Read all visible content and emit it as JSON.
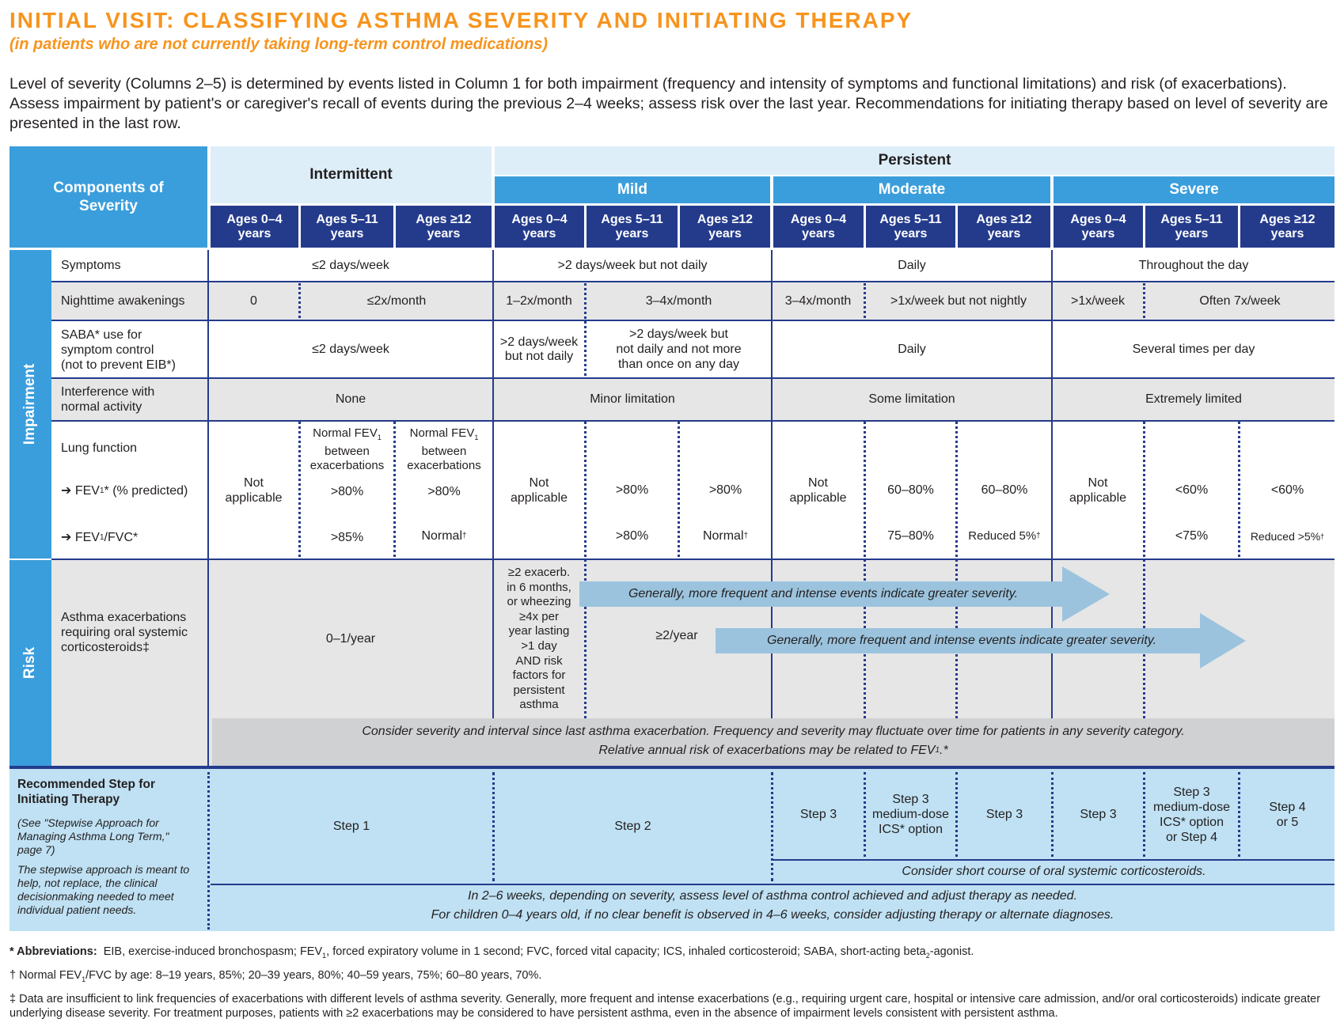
{
  "title": "INITIAL VISIT:  CLASSIFYING ASTHMA SEVERITY AND INITIATING THERAPY",
  "subtitle": "(in patients who are not currently taking long-term control medications)",
  "intro": "Level of severity (Columns 2–5) is determined by events listed in Column 1 for both impairment (frequency and intensity of symptoms and functional limitations) and risk (of exacerbations).  Assess impairment by patient's or caregiver's recall of events during the previous 2–4 weeks; assess risk over the last year.  Recommendations for initiating therapy based on level of severity are presented in the last row.",
  "header": {
    "components": "Components of Severity",
    "intermittent": "Intermittent",
    "persistent": "Persistent",
    "mild": "Mild",
    "moderate": "Moderate",
    "severe": "Severe",
    "ages_0_4": "Ages 0–4 years",
    "ages_5_11": "Ages 5–11 years",
    "ages_12": "Ages ≥12 years"
  },
  "sections": {
    "impairment": "Impairment",
    "risk": "Risk"
  },
  "rows": {
    "symptoms": {
      "label": "Symptoms",
      "intermittent": "≤2 days/week",
      "mild": ">2 days/week but not daily",
      "moderate": "Daily",
      "severe": "Throughout the day"
    },
    "nighttime": {
      "label": "Nighttime awakenings",
      "int_0_4": "0",
      "int_rest": "≤2x/month",
      "mild_0_4": "1–2x/month",
      "mild_rest": "3–4x/month",
      "mod_0_4": "3–4x/month",
      "mod_rest": ">1x/week but not nightly",
      "sev_0_4": ">1x/week",
      "sev_rest": "Often 7x/week"
    },
    "saba": {
      "label_1": "SABA* use for",
      "label_2": "symptom control",
      "label_3": "(not to prevent EIB*)",
      "intermittent": "≤2 days/week",
      "mild_0_4_1": ">2 days/week",
      "mild_0_4_2": "but not daily",
      "mild_rest_1": ">2 days/week but",
      "mild_rest_2": "not daily and not more",
      "mild_rest_3": "than once on any day",
      "moderate": "Daily",
      "severe": "Several times per day"
    },
    "interference": {
      "label_1": "Interference with",
      "label_2": "normal activity",
      "intermittent": "None",
      "mild": "Minor limitation",
      "moderate": "Some limitation",
      "severe": "Extremely limited"
    },
    "lung": {
      "label": "Lung function",
      "fev1_label": "FEV",
      "fev1_label_b": "* (% predicted)",
      "fvc_label": "FEV",
      "fvc_label_b": "/FVC*",
      "sub1": "1",
      "not_applicable_1": "Not",
      "not_applicable_2": "applicable",
      "normal_fev_1": "Normal FEV",
      "normal_fev_2": "between",
      "normal_fev_3": "exacerbations",
      "int_5_11_fev": ">80%",
      "int_5_11_fvc": ">85%",
      "int_12_fev": ">80%",
      "int_12_fvc": "Normal",
      "dagger": "†",
      "mild_5_11_fev": ">80%",
      "mild_5_11_fvc": ">80%",
      "mild_12_fev": ">80%",
      "mild_12_fvc": "Normal",
      "mod_5_11_fev": "60–80%",
      "mod_5_11_fvc": "75–80%",
      "mod_12_fev": "60–80%",
      "mod_12_fvc": "Reduced 5%",
      "sev_5_11_fev": "<60%",
      "sev_5_11_fvc": "<75%",
      "sev_12_fev": "<60%",
      "sev_12_fvc": "Reduced >5%"
    },
    "risk": {
      "label_1": "Asthma exacerbations",
      "label_2": "requiring oral systemic",
      "label_3": "corticosteroids‡",
      "intermittent": "0–1/year",
      "mild_0_4": [
        "≥2 exacerb.",
        "in 6 months,",
        "or wheezing",
        "≥4x per",
        "year lasting",
        ">1 day",
        "AND risk",
        "factors for",
        "persistent",
        "asthma"
      ],
      "mild_rest": "≥2/year",
      "arrow_text": "Generally, more frequent and intense events indicate greater severity.",
      "consider_1": "Consider severity and interval since last asthma exacerbation.  Frequency and severity may fluctuate over time for patients in any severity category.",
      "consider_2": "Relative annual risk of exacerbations may be related to FEV",
      "consider_2_b": ".*"
    },
    "recommended": {
      "label_1": "Recommended Step for",
      "label_2": "Initiating Therapy",
      "note_1": "(See \"Stepwise Approach for Managing Asthma Long Term,\" page 7)",
      "note_2": "The stepwise approach is meant to help, not replace, the clinical decisionmaking needed to meet individual patient needs.",
      "intermittent": "Step 1",
      "mild": "Step 2",
      "step3": "Step 3",
      "mod_5_11": [
        "Step 3",
        "medium-dose",
        "ICS* option"
      ],
      "sev_5_11": [
        "Step 3",
        "medium-dose",
        "ICS* option",
        "or Step 4"
      ],
      "sev_12": [
        "Step 4",
        "or 5"
      ],
      "ocs": "Consider short course of oral systemic corticosteroids.",
      "bottom_1": "In 2–6 weeks, depending on severity, assess level of asthma control achieved and adjust therapy as needed.",
      "bottom_2": "For children 0–4 years old, if no clear benefit is observed in 4–6 weeks, consider adjusting therapy or alternate diagnoses."
    }
  },
  "footnotes": {
    "abbr_label": "* Abbreviations:",
    "abbr_1": "EIB, exercise-induced bronchospasm; FEV",
    "abbr_1_sub": "1",
    "abbr_2": ", forced expiratory volume in 1 second; FVC, forced vital capacity; ICS, inhaled corticosteroid; SABA, short-acting beta",
    "abbr_2_sub": "2",
    "abbr_3": "-agonist.",
    "dagger_1": "† Normal FEV",
    "dagger_sub": "1",
    "dagger_2": "/FVC by age:  8–19 years, 85%; 20–39 years, 80%; 40–59 years, 75%; 60–80 years, 70%.",
    "ddagger": "‡ Data are insufficient to link frequencies of exacerbations with different levels of asthma severity.  Generally, more frequent and intense exacerbations (e.g., requiring urgent care, hospital or intensive care admission, and/or oral corticosteroids) indicate greater underlying disease severity.  For treatment purposes, patients with ≥2 exacerbations may be considered to have persistent asthma, even in the absence of impairment levels consistent with persistent asthma."
  },
  "colors": {
    "orange": "#f7941d",
    "blue": "#3b9edc",
    "navy": "#243b8c",
    "light_blue": "#ddeef9",
    "gray": "#e6e6e7",
    "arrow": "#9bc3dd"
  }
}
